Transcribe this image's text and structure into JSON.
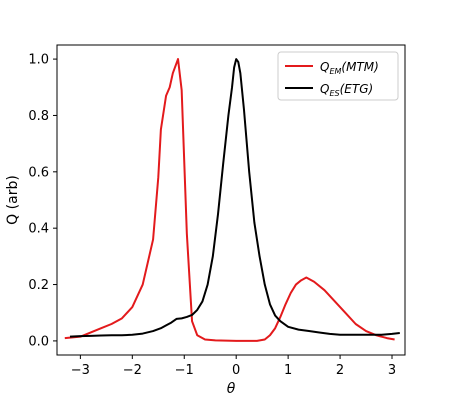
{
  "chart_data": {
    "type": "line",
    "xlabel": "θ",
    "ylabel": "Q (arb)",
    "xlim": [
      -3.45,
      3.25
    ],
    "ylim": [
      -0.05,
      1.05
    ],
    "xticks": [
      -3,
      -2,
      -1,
      0,
      1,
      2,
      3
    ],
    "yticks": [
      0.0,
      0.2,
      0.4,
      0.6,
      0.8,
      1.0
    ],
    "xtick_labels": [
      "−3",
      "−2",
      "−1",
      "0",
      "1",
      "2",
      "3"
    ],
    "ytick_labels": [
      "0.0",
      "0.2",
      "0.4",
      "0.6",
      "0.8",
      "1.0"
    ],
    "grid": false,
    "legend_position": "top-right",
    "series": [
      {
        "name": "Q_EM(MTM)",
        "legend_main": "Q",
        "legend_sub": "EM",
        "legend_tail": "(MTM)",
        "color": "#e31a1c",
        "x": [
          -3.3,
          -3.0,
          -2.8,
          -2.6,
          -2.4,
          -2.2,
          -2.0,
          -1.8,
          -1.6,
          -1.5,
          -1.45,
          -1.35,
          -1.28,
          -1.22,
          -1.12,
          -1.05,
          -0.95,
          -0.85,
          -0.75,
          -0.6,
          -0.4,
          -0.2,
          0.0,
          0.2,
          0.4,
          0.55,
          0.65,
          0.75,
          0.85,
          0.95,
          1.05,
          1.15,
          1.25,
          1.35,
          1.5,
          1.7,
          1.9,
          2.1,
          2.3,
          2.5,
          2.7,
          2.9,
          3.05
        ],
        "y": [
          0.01,
          0.015,
          0.03,
          0.045,
          0.06,
          0.08,
          0.12,
          0.2,
          0.36,
          0.58,
          0.75,
          0.87,
          0.9,
          0.95,
          1.0,
          0.89,
          0.38,
          0.07,
          0.02,
          0.005,
          0.002,
          0.001,
          0.0,
          0.0,
          0.0,
          0.005,
          0.02,
          0.045,
          0.085,
          0.13,
          0.17,
          0.2,
          0.215,
          0.225,
          0.21,
          0.18,
          0.14,
          0.1,
          0.06,
          0.035,
          0.02,
          0.01,
          0.005
        ]
      },
      {
        "name": "Q_ES(ETG)",
        "legend_main": "Q",
        "legend_sub": "ES",
        "legend_tail": "(ETG)",
        "color": "#000000",
        "x": [
          -3.2,
          -3.0,
          -2.8,
          -2.6,
          -2.4,
          -2.2,
          -2.0,
          -1.8,
          -1.6,
          -1.45,
          -1.35,
          -1.25,
          -1.15,
          -1.05,
          -0.95,
          -0.85,
          -0.75,
          -0.65,
          -0.55,
          -0.45,
          -0.35,
          -0.25,
          -0.15,
          -0.08,
          -0.04,
          0.0,
          0.04,
          0.08,
          0.15,
          0.25,
          0.35,
          0.45,
          0.55,
          0.65,
          0.75,
          0.85,
          1.0,
          1.2,
          1.4,
          1.6,
          1.8,
          2.0,
          2.2,
          2.4,
          2.6,
          2.8,
          3.0,
          3.15
        ],
        "y": [
          0.015,
          0.017,
          0.018,
          0.019,
          0.02,
          0.02,
          0.022,
          0.026,
          0.035,
          0.045,
          0.055,
          0.065,
          0.078,
          0.08,
          0.085,
          0.092,
          0.11,
          0.14,
          0.2,
          0.3,
          0.45,
          0.63,
          0.8,
          0.9,
          0.97,
          1.0,
          0.99,
          0.95,
          0.82,
          0.6,
          0.42,
          0.3,
          0.2,
          0.13,
          0.09,
          0.07,
          0.05,
          0.04,
          0.035,
          0.03,
          0.025,
          0.022,
          0.022,
          0.022,
          0.022,
          0.022,
          0.025,
          0.028
        ]
      }
    ]
  }
}
